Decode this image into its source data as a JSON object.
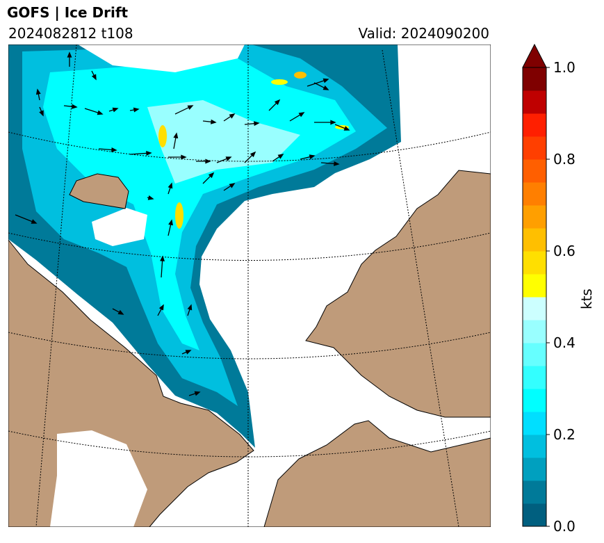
{
  "header": {
    "title": "GOFS  |  Ice Drift",
    "run": "2024082812 t108",
    "valid": "Valid: 2024090200"
  },
  "colorbar": {
    "unit": "kts",
    "ticks": [
      "0.0",
      "0.2",
      "0.4",
      "0.6",
      "0.8",
      "1.0"
    ],
    "bounds": [
      0,
      1.0
    ],
    "step": 0.05,
    "colors": [
      "#005f7f",
      "#007a99",
      "#00a0bf",
      "#00bfdf",
      "#00dfff",
      "#00ffff",
      "#33ffff",
      "#66ffff",
      "#99ffff",
      "#ccffff",
      "#ffff00",
      "#ffdf00",
      "#ffbf00",
      "#ff9f00",
      "#ff7f00",
      "#ff5f00",
      "#ff3f00",
      "#ff1f00",
      "#bf0000",
      "#7f0000"
    ],
    "extend_color": "#7f0000"
  },
  "map": {
    "land_color": "#bf9b7a",
    "ocean_color": "#ffffff"
  }
}
